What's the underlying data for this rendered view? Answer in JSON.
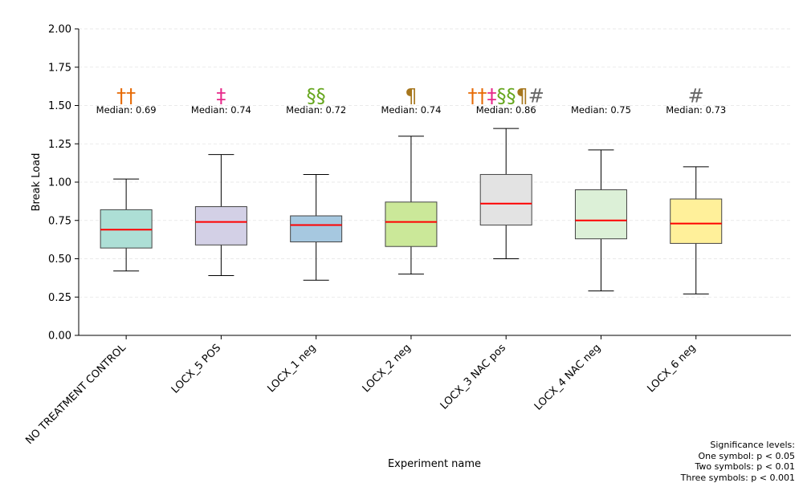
{
  "chart_data": {
    "type": "box",
    "xlabel": "Experiment name",
    "ylabel": "Break Load",
    "ylim": [
      0,
      2
    ],
    "yticks": [
      "0.00",
      "0.25",
      "0.50",
      "0.75",
      "1.00",
      "1.25",
      "1.50",
      "1.75",
      "2.00"
    ],
    "grid": "horizontal dashed",
    "median_color": "#ff0000",
    "median_label_prefix": "Median: ",
    "groups": [
      {
        "name": "NO TREATMENT CONTROL",
        "whisker_low": 0.42,
        "q1": 0.57,
        "median": 0.69,
        "q3": 0.82,
        "whisker_high": 1.02,
        "median_label": "0.69",
        "color": "#addfd6",
        "markers": [
          {
            "symbol": "††",
            "color": "#e66a05"
          }
        ]
      },
      {
        "name": "LOCX_5 POS",
        "whisker_low": 0.39,
        "q1": 0.59,
        "median": 0.74,
        "q3": 0.84,
        "whisker_high": 1.18,
        "median_label": "0.74",
        "color": "#d3d0e6",
        "markers": [
          {
            "symbol": "‡",
            "color": "#e7298a"
          }
        ]
      },
      {
        "name": "LOCX_1 neg",
        "whisker_low": 0.36,
        "q1": 0.61,
        "median": 0.72,
        "q3": 0.78,
        "whisker_high": 1.05,
        "median_label": "0.72",
        "color": "#a6c8e0",
        "markers": [
          {
            "symbol": "§§",
            "color": "#66a61e"
          }
        ]
      },
      {
        "name": "LOCX_2 neg",
        "whisker_low": 0.4,
        "q1": 0.58,
        "median": 0.74,
        "q3": 0.87,
        "whisker_high": 1.3,
        "median_label": "0.74",
        "color": "#cbe899",
        "markers": [
          {
            "symbol": "¶",
            "color": "#a6761d"
          }
        ]
      },
      {
        "name": "LOCX_3 NAC pos",
        "whisker_low": 0.5,
        "q1": 0.72,
        "median": 0.86,
        "q3": 1.05,
        "whisker_high": 1.35,
        "median_label": "0.86",
        "color": "#e3e3e3",
        "markers": [
          {
            "symbol": "††",
            "color": "#e66a05"
          },
          {
            "symbol": "‡",
            "color": "#e7298a"
          },
          {
            "symbol": "§§",
            "color": "#66a61e"
          },
          {
            "symbol": "¶",
            "color": "#a6761d"
          },
          {
            "symbol": "#",
            "color": "#666666"
          }
        ]
      },
      {
        "name": "LOCX_4 NAC neg",
        "whisker_low": 0.29,
        "q1": 0.63,
        "median": 0.75,
        "q3": 0.95,
        "whisker_high": 1.21,
        "median_label": "0.75",
        "color": "#dcf0d7",
        "markers": []
      },
      {
        "name": "LOCX_6 neg",
        "whisker_low": 0.27,
        "q1": 0.6,
        "median": 0.73,
        "q3": 0.89,
        "whisker_high": 1.1,
        "median_label": "0.73",
        "color": "#fff09a",
        "markers": [
          {
            "symbol": "#",
            "color": "#666666"
          }
        ]
      }
    ]
  },
  "significance_note": {
    "title": "Significance levels:",
    "one": "One symbol: p < 0.05",
    "two": "Two symbols: p < 0.01",
    "three": "Three symbols: p < 0.001"
  }
}
